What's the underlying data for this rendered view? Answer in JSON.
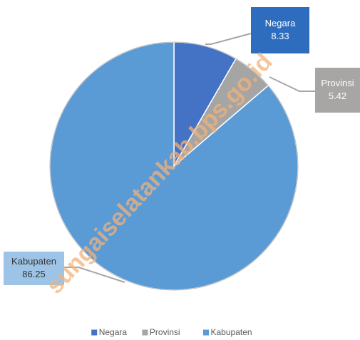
{
  "chart_data": {
    "type": "pie",
    "categories": [
      "Negara",
      "Provinsi",
      "Kabupaten"
    ],
    "values": [
      8.33,
      5.42,
      86.25
    ],
    "colors": [
      "#4472c4",
      "#a5a5a5",
      "#5b9bd5"
    ],
    "legend": "bottom",
    "watermark": "sungaiselatankab.bps.go.id"
  }
}
